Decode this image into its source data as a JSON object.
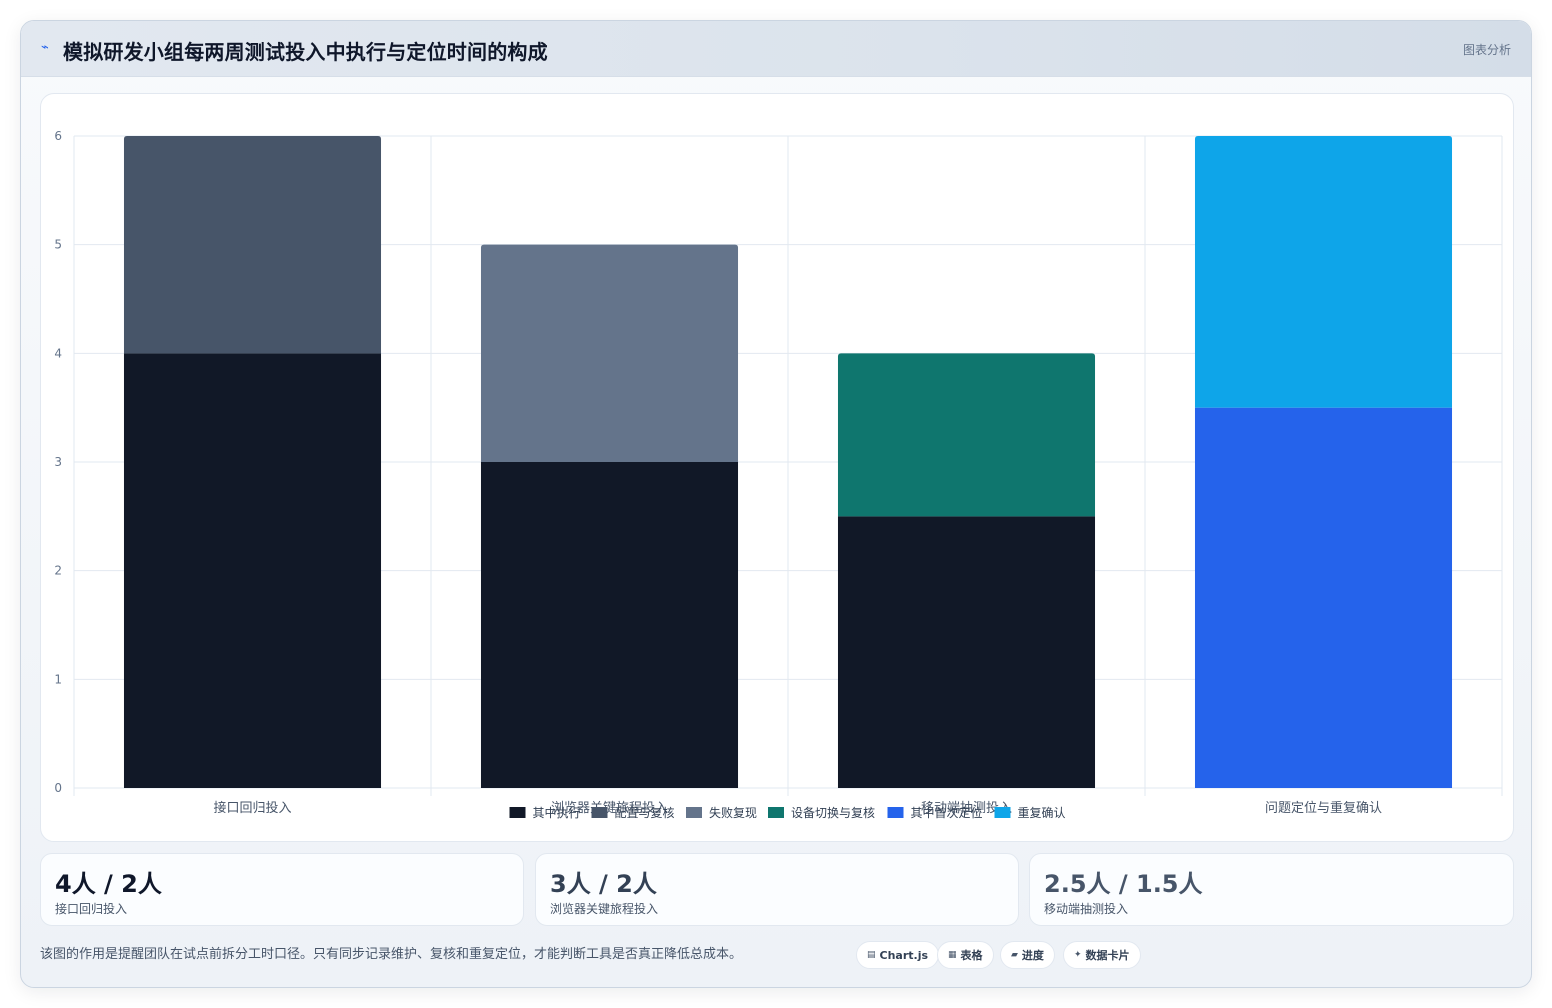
{
  "header": {
    "title": "模拟研发小组每两周测试投入中执行与定位时间的构成",
    "badge": "图表分析"
  },
  "chart_data": {
    "type": "bar",
    "stacked": true,
    "title": "模拟研发小组每两周测试投入中执行与定位时间的构成",
    "categories": [
      "接口回归投入",
      "浏览器关键旅程投入",
      "移动端抽测投入",
      "问题定位与重复确认"
    ],
    "ylim": [
      0,
      6
    ],
    "yticks": [
      0,
      1,
      2,
      3,
      4,
      5,
      6
    ],
    "grid": true,
    "legend_position": "bottom",
    "series": [
      {
        "name": "其中执行",
        "color": "#111827",
        "values": [
          4,
          3,
          2.5,
          null
        ]
      },
      {
        "name": "配置与复核",
        "color": "#475569",
        "values": [
          2,
          null,
          null,
          null
        ]
      },
      {
        "name": "失败复现",
        "color": "#64748b",
        "values": [
          null,
          2,
          null,
          null
        ]
      },
      {
        "name": "设备切换与复核",
        "color": "#0f766e",
        "values": [
          null,
          null,
          1.5,
          null
        ]
      },
      {
        "name": "其中首次定位",
        "color": "#2563eb",
        "values": [
          null,
          null,
          null,
          3.5
        ]
      },
      {
        "name": "重复确认",
        "color": "#0ea5e9",
        "values": [
          null,
          null,
          null,
          2.5
        ]
      }
    ]
  },
  "stats": [
    {
      "value": "4人 / 2人",
      "label": "接口回归投入",
      "color": "#0f172a"
    },
    {
      "value": "3人 / 2人",
      "label": "浏览器关键旅程投入",
      "color": "#334155"
    },
    {
      "value": "2.5人 / 1.5人",
      "label": "移动端抽测投入",
      "color": "#475569"
    }
  ],
  "note": "该图的作用是提醒团队在试点前拆分工时口径。只有同步记录维护、复核和重复定位，才能判断工具是否真正降低总成本。",
  "chips": [
    {
      "icon": "chart-icon",
      "glyph": "▤",
      "label": "Chart.js"
    },
    {
      "icon": "table-icon",
      "glyph": "▦",
      "label": "表格"
    },
    {
      "icon": "progress-icon",
      "glyph": "▰",
      "label": "进度"
    },
    {
      "icon": "card-icon",
      "glyph": "✦",
      "label": "数据卡片"
    }
  ],
  "colors": {
    "accent": "#2563eb",
    "grid": "#e2e8f0"
  }
}
